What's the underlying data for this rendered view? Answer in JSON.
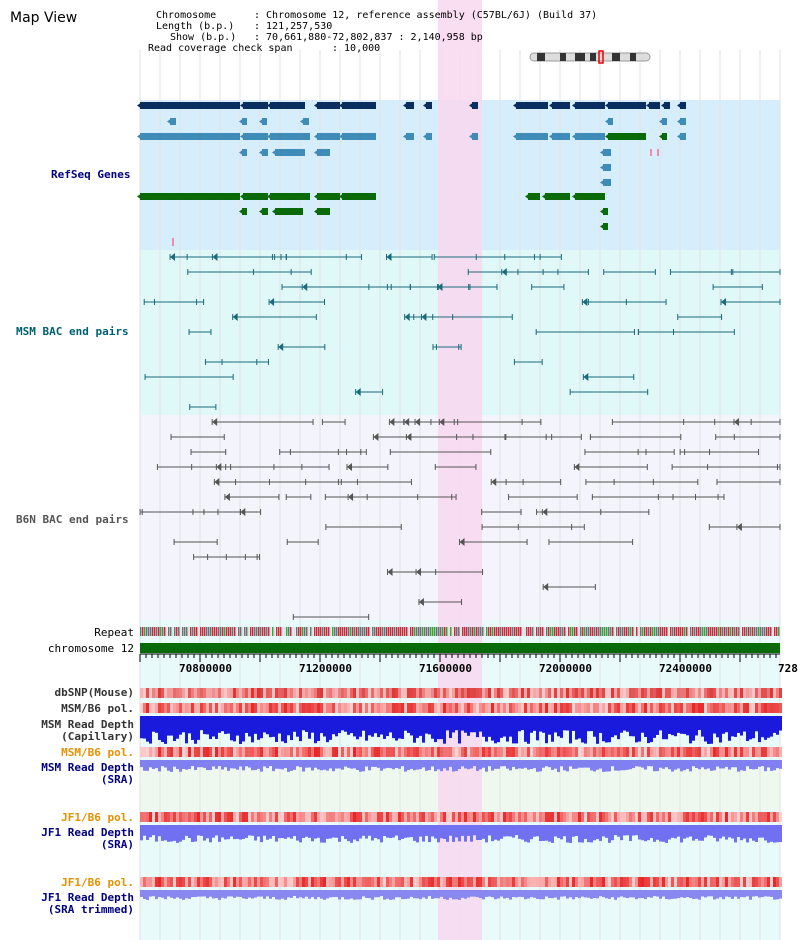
{
  "header": {
    "title": "Map View",
    "chromosome_key": "Chromosome",
    "chromosome_val": ": Chromosome 12, reference assembly (C57BL/6J) (Build 37)",
    "length_key": "Length (b.p.)",
    "length_val": ": 121,257,530",
    "show_key": "Show (b.p.)",
    "show_val": ": 70,661,880-72,802,837 : 2,140,958 bp",
    "span_key": "Read coverage check span",
    "span_val": ": 10,000"
  },
  "tracks": {
    "refseq": "RefSeq Genes",
    "msm_bac": "MSM BAC end pairs",
    "b6n_bac": "B6N BAC end pairs",
    "repeat": "Repeat",
    "chromosome": "chromosome 12",
    "dbsnp": "dbSNP(Mouse)",
    "msm_b6_pol_1": "MSM/B6 pol.",
    "msm_read_depth_cap": "MSM Read Depth",
    "capillary": "(Capillary)",
    "msm_b6_pol_2": "MSM/B6 pol.",
    "msm_read_depth_sra": "MSM Read Depth",
    "sra_1": "(SRA)",
    "jf1_b6_pol_1": "JF1/B6 pol.",
    "jf1_read_depth": "JF1 Read Depth",
    "sra_2": "(SRA)",
    "jf1_b6_pol_2": "JF1/B6 pol.",
    "jf1_read_depth_trim": "JF1 Read Depth",
    "sra_trimmed": "(SRA trimmed)"
  },
  "axis": {
    "ticks": [
      "70800000",
      "71200000",
      "71600000",
      "72000000",
      "72400000",
      "728"
    ]
  },
  "colors": {
    "refseq_bg": "#d6eefb",
    "msm_bg": "#e0f8f8",
    "b6n_bg": "#f4f4fc",
    "highlight": "#f8d8f0",
    "gene_dark": "#0a2e60",
    "gene_mid": "#3f8cb8",
    "gene_green": "#0a6a0a",
    "msm_line": "#1a6a7a",
    "b6n_line": "#555555",
    "chrom_bar": "#0a6a0a",
    "label_navy": "#000080",
    "label_teal": "#006070",
    "label_orange": "#e89000"
  }
}
